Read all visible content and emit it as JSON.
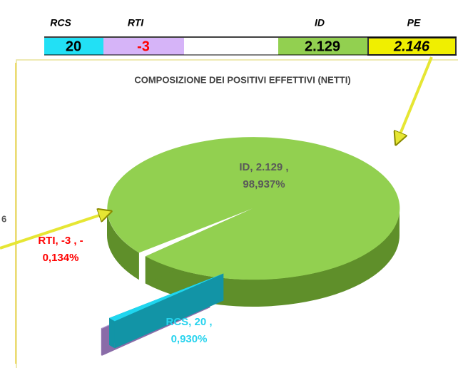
{
  "header": {
    "labels": [
      "RCS",
      "RTI",
      "ID",
      "PE"
    ],
    "values": [
      "20",
      "-3",
      "2.129",
      "2.146"
    ]
  },
  "edge_fragment": "6",
  "chart_data": {
    "type": "pie3d",
    "title": "COMPOSIZIONE DEI POSITIVI EFFETTIVI (NETTI)",
    "categories": [
      "ID",
      "RCS",
      "RTI"
    ],
    "values": [
      2129,
      20,
      -3
    ],
    "percents": [
      98.937,
      0.93,
      -0.134
    ],
    "data_labels": [
      [
        "ID, 2.129 ,",
        "98,937%"
      ],
      [
        "RCS, 20 ,",
        "0,930%"
      ],
      [
        "RTI, -3 , -",
        "0,134%"
      ]
    ],
    "colors": [
      "#92d050",
      "#1fd6ef",
      "#b9a0d8"
    ],
    "side_colors": [
      "#5f8f2a",
      "#1294a6",
      "#8a6ca8"
    ],
    "label_colors": [
      "#595959",
      "#27d3ee",
      "#ff0000"
    ]
  }
}
